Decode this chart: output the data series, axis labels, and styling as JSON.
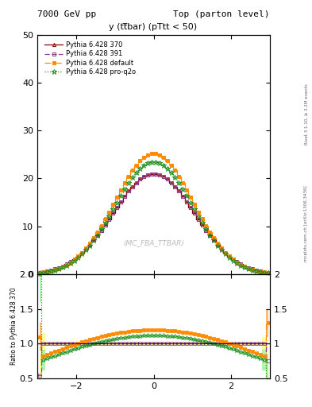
{
  "title_left": "7000 GeV pp",
  "title_right": "Top (parton level)",
  "plot_title": "y (tt̅bar) (pTtt < 50)",
  "watermark": "(MC_FBA_TTBAR)",
  "side_text_bottom": "mcplots.cern.ch [arXiv:1306.3436]",
  "side_text_top": "Rivet 3.1.10, ≥ 3.2M events",
  "ylabel_ratio": "Ratio to Pythia 6.428 370",
  "xlim": [
    -3.0,
    3.0
  ],
  "ylim_main": [
    0,
    50
  ],
  "ylim_ratio": [
    0.5,
    2.0
  ],
  "legend_entries": [
    "Pythia 6.428 370",
    "Pythia 6.428 391",
    "Pythia 6.428 default",
    "Pythia 6.428 pro-q2o"
  ],
  "c370": "#8B0000",
  "c391": "#8B4090",
  "cdef": "#FF8C00",
  "cproq": "#228B22",
  "band_def": "#FFA040",
  "band_proq": "#90EE90",
  "band_391": "#FFFF80",
  "amp_370": 21.0,
  "amp_391": 21.0,
  "amp_def": 25.2,
  "amp_proq": 23.5,
  "sigma_370": 1.05,
  "sigma_391": 1.05,
  "sigma_def": 1.0,
  "sigma_proq": 1.0,
  "ratio_391_flat": 1.0,
  "ratio_def_flat": 1.22,
  "ratio_proq_flat": 1.13
}
